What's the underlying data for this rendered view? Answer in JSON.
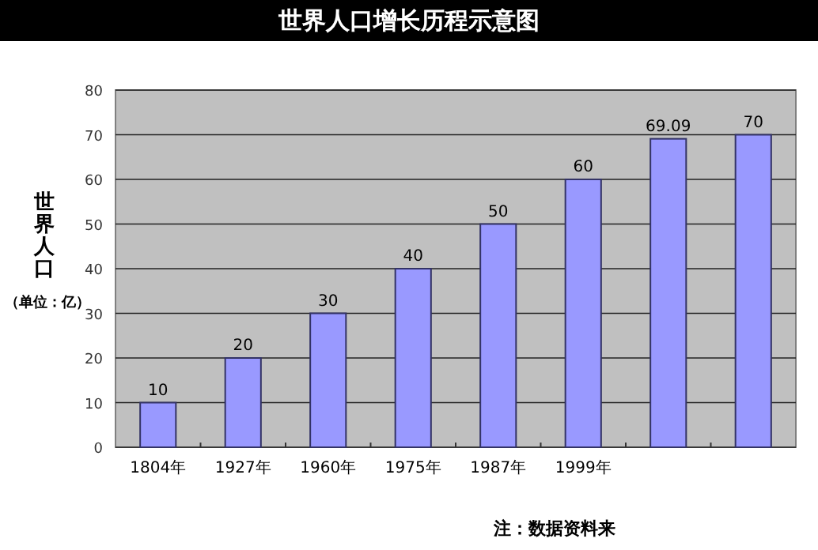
{
  "chart_data": {
    "type": "bar",
    "title": "世界人口增长历程示意图",
    "ylabel": "世界人口",
    "subtitle": "（单位：亿）",
    "categories": [
      "1804年",
      "1927年",
      "1960年",
      "1975年",
      "1987年",
      "1999年",
      null,
      null
    ],
    "values": [
      10,
      20,
      30,
      40,
      50,
      60,
      69.09,
      70
    ],
    "color": "#9999ff",
    "ylim": [
      0,
      80
    ],
    "yticks": [
      0,
      10,
      20,
      30,
      40,
      50,
      60,
      70,
      80
    ],
    "grid": "y",
    "data_labels": true,
    "annotations": [
      "注：数据资料来"
    ]
  }
}
